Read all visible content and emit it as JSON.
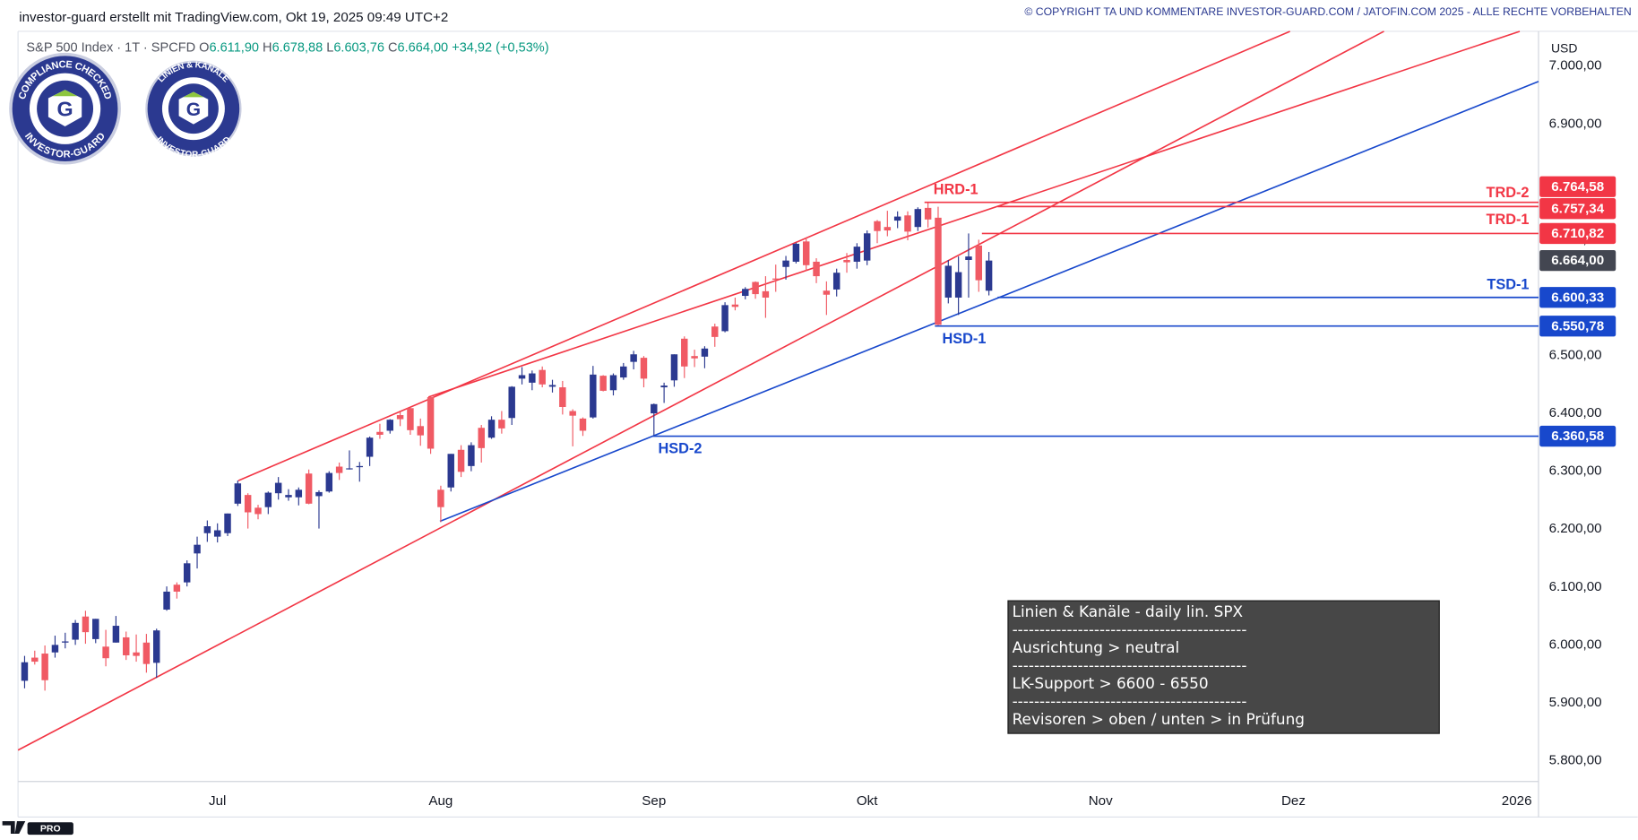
{
  "header": {
    "left": "investor-guard erstellt mit TradingView.com, Okt 19, 2025 09:49 UTC+2",
    "right": "© COPYRIGHT TA UND KOMMENTARE INVESTOR-GUARD.COM / JATOFIN.COM 2025 - ALLE RECHTE VORBEHALTEN"
  },
  "legend": {
    "symbol": "S&P 500 Index · 1T · SPCFD",
    "fields": [
      {
        "key": "O",
        "value": "6.611,90"
      },
      {
        "key": "H",
        "value": "6.678,88"
      },
      {
        "key": "L",
        "value": "6.603,76"
      },
      {
        "key": "C",
        "value": "6.664,00"
      }
    ],
    "change": "+34,92 (+0,53%)"
  },
  "badges": [
    {
      "top": "COMPLIANCE CHECKED",
      "bottom": "INVESTOR-GUARD"
    },
    {
      "top": "LINIEN & KANÄLE",
      "bottom": "INVESTOR-GUARD"
    }
  ],
  "chart_data": {
    "type": "candlestick",
    "categories": [
      null,
      null,
      null,
      null,
      null,
      null,
      null,
      null,
      null,
      null,
      null,
      null,
      null,
      null,
      null,
      null,
      null,
      null,
      null,
      "Jul",
      null,
      null,
      null,
      null,
      null,
      null,
      null,
      null,
      null,
      null,
      null,
      null,
      null,
      null,
      null,
      null,
      null,
      null,
      null,
      null,
      null,
      "Aug",
      null,
      null,
      null,
      null,
      null,
      null,
      null,
      null,
      null,
      null,
      null,
      null,
      null,
      null,
      null,
      null,
      null,
      null,
      null,
      null,
      "Sep",
      null,
      null,
      null,
      null,
      null,
      null,
      null,
      null,
      null,
      null,
      null,
      null,
      null,
      null,
      null,
      null,
      null,
      null,
      null,
      null,
      "Okt",
      null,
      null,
      null,
      null,
      null,
      null,
      null,
      null,
      null,
      null,
      null,
      null,
      null,
      null,
      null,
      null,
      null,
      null,
      null,
      null,
      null,
      null,
      "Nov",
      null,
      null,
      null,
      null,
      null,
      null,
      null,
      null,
      null,
      null,
      null,
      null,
      null,
      null,
      null,
      null,
      null,
      null,
      "Dez",
      null,
      null,
      null,
      null,
      null,
      null,
      null,
      null,
      null,
      null,
      null,
      null,
      null,
      null,
      null,
      null,
      null,
      null,
      null,
      null,
      null,
      "2026"
    ],
    "open": [
      5938,
      5978,
      5985,
      5987,
      6004,
      6009,
      6049,
      6010,
      5997,
      6004,
      6013,
      5987,
      6004,
      5969,
      6061,
      6104,
      6108,
      6158,
      6193,
      6187,
      6193,
      6244,
      6259,
      6237,
      6238,
      6262,
      6255,
      6255,
      6296,
      6257,
      6265,
      6308,
      6304,
      6307,
      6325,
      6368,
      6370,
      6397,
      6409,
      6378,
      6428,
      6268,
      6272,
      6337,
      6309,
      6375,
      6358,
      6389,
      6392,
      6460,
      6453,
      6475,
      6446,
      6445,
      6404,
      6391,
      6393,
      6465,
      6440,
      6462,
      6489,
      6496,
      6400,
      6445,
      6457,
      6529,
      6499,
      6498,
      6550,
      6542,
      6588,
      6603,
      6627,
      6611,
      6633,
      6653,
      6662,
      6697,
      6662,
      6612,
      6614,
      6665,
      6662,
      6664,
      6732,
      6722,
      6733,
      6742,
      6722,
      6755,
      6738,
      6600,
      6600,
      6665,
      6690,
      6611.9,
      null,
      null,
      null,
      null,
      null,
      null,
      null,
      null,
      null,
      null,
      null,
      null,
      null,
      null,
      null,
      null,
      null,
      null,
      null,
      null,
      null,
      null,
      null,
      null,
      null,
      null,
      null,
      null,
      null,
      null,
      null,
      null,
      null,
      null,
      null,
      null,
      null,
      null,
      null,
      null,
      null,
      null,
      null,
      null,
      null,
      null,
      null,
      null,
      null,
      null,
      null,
      null
    ],
    "high": [
      5981,
      5990,
      5999,
      6016,
      6021,
      6043,
      6059,
      6045,
      6026,
      6050,
      6023,
      6018,
      6019,
      6028,
      6101,
      6108,
      6146,
      6187,
      6215,
      6210,
      6227,
      6284,
      6262,
      6242,
      6265,
      6290,
      6269,
      6272,
      6303,
      6267,
      6300,
      6315,
      6336,
      6316,
      6360,
      6382,
      6390,
      6402,
      6410,
      6391,
      6428,
      6275,
      6330,
      6345,
      6350,
      6380,
      6395,
      6404,
      6447,
      6480,
      6474,
      6481,
      6458,
      6456,
      6407,
      6393,
      6482,
      6466,
      6469,
      6487,
      6508,
      6499,
      6417,
      6453,
      6502,
      6533,
      6510,
      6516,
      6555,
      6592,
      6600,
      6618,
      6628,
      6637,
      6657,
      6672,
      6695,
      6704,
      6668,
      6628,
      6650,
      6677,
      6694,
      6716,
      6734,
      6750,
      6749,
      6749,
      6756,
      6764.58,
      6757,
      6665,
      6671,
      6710.82,
      6700,
      6678.88,
      null,
      null,
      null,
      null,
      null,
      null,
      null,
      null,
      null,
      null,
      null,
      null,
      null,
      null,
      null,
      null,
      null,
      null,
      null,
      null,
      null,
      null,
      null,
      null,
      null,
      null,
      null,
      null,
      null,
      null,
      null,
      null,
      null,
      null,
      null,
      null,
      null,
      null,
      null,
      null,
      null,
      null,
      null,
      null,
      null,
      null,
      null,
      null,
      null,
      null,
      null,
      null
    ],
    "low": [
      5925,
      5966,
      5921,
      5978,
      5994,
      6000,
      6002,
      6003,
      5963,
      6004,
      5974,
      5971,
      5952,
      5943,
      6059,
      6080,
      6101,
      6132,
      6178,
      6177,
      6188,
      6240,
      6201,
      6217,
      6226,
      6251,
      6249,
      6241,
      6243,
      6201,
      6263,
      6285,
      6303,
      6282,
      6309,
      6356,
      6365,
      6378,
      6363,
      6344,
      6330,
      6212,
      6265,
      6290,
      6300,
      6315,
      6356,
      6365,
      6380,
      6450,
      6440,
      6445,
      6436,
      6398,
      6343,
      6361,
      6391,
      6438,
      6431,
      6458,
      6476,
      6445,
      6360.58,
      6418,
      6446,
      6461,
      6480,
      6478,
      6515,
      6540,
      6578,
      6597,
      6598,
      6565,
      6610,
      6631,
      6659,
      6646,
      6625,
      6570,
      6602,
      6643,
      6650,
      6656,
      6694,
      6706,
      6720,
      6699,
      6715,
      6721,
      6550.78,
      6590,
      6570,
      6600,
      6610,
      6603.76,
      null,
      null,
      null,
      null,
      null,
      null,
      null,
      null,
      null,
      null,
      null,
      null,
      null,
      null,
      null,
      null,
      null,
      null,
      null,
      null,
      null,
      null,
      null,
      null,
      null,
      null,
      null,
      null,
      null,
      null,
      null,
      null,
      null,
      null,
      null,
      null,
      null,
      null,
      null,
      null,
      null,
      null,
      null,
      null,
      null,
      null,
      null,
      null,
      null,
      null,
      null,
      null
    ],
    "close": [
      5970,
      5971,
      5939,
      6000,
      6006,
      6038,
      6022,
      6045,
      5977,
      6033,
      5982,
      5981,
      5967,
      6025,
      6092,
      6092,
      6141,
      6173,
      6205,
      6198,
      6227,
      6279,
      6229,
      6226,
      6263,
      6280,
      6259,
      6268,
      6244,
      6264,
      6297,
      6297,
      6305,
      6309,
      6358,
      6363,
      6389,
      6390,
      6371,
      6362,
      6339,
      6238,
      6330,
      6299,
      6345,
      6340,
      6389,
      6374,
      6446,
      6466,
      6469,
      6450,
      6449,
      6411,
      6396,
      6370,
      6467,
      6439,
      6466,
      6481,
      6502,
      6460,
      6416,
      6448,
      6502,
      6481,
      6495,
      6512,
      6532,
      6587,
      6584,
      6615,
      6606,
      6600,
      6631,
      6664,
      6693,
      6656,
      6637,
      6605,
      6643,
      6661,
      6688,
      6711,
      6715,
      6716,
      6740,
      6714,
      6753,
      6735,
      6553,
      6655,
      6644,
      6671,
      6630,
      6664,
      null,
      null,
      null,
      null,
      null,
      null,
      null,
      null,
      null,
      null,
      null,
      null,
      null,
      null,
      null,
      null,
      null,
      null,
      null,
      null,
      null,
      null,
      null,
      null,
      null,
      null,
      null,
      null,
      null,
      null,
      null,
      null,
      null,
      null,
      null,
      null,
      null,
      null,
      null,
      null,
      null,
      null,
      null,
      null,
      null,
      null,
      null,
      null,
      null,
      null,
      null,
      null
    ],
    "up_color": "#2b3990",
    "down_color": "#f05a64",
    "currency": "USD",
    "ylim": [
      5764,
      7060
    ],
    "yticks": [
      {
        "value": 5800,
        "label": "5.800,00"
      },
      {
        "value": 5900,
        "label": "5.900,00"
      },
      {
        "value": 6000,
        "label": "6.000,00"
      },
      {
        "value": 6100,
        "label": "6.100,00"
      },
      {
        "value": 6200,
        "label": "6.200,00"
      },
      {
        "value": 6300,
        "label": "6.300,00"
      },
      {
        "value": 6400,
        "label": "6.400,00"
      },
      {
        "value": 6500,
        "label": "6.500,00"
      },
      {
        "value": 6600,
        "label": "6.600,00"
      },
      {
        "value": 6700,
        "label": "6.700,00"
      },
      {
        "value": 6800,
        "label": "6.800,00"
      },
      {
        "value": 6900,
        "label": "6.900,00"
      },
      {
        "value": 7000,
        "label": "7.000,00"
      }
    ],
    "last": {
      "value": 6664,
      "label": "6.664,00",
      "color": "#434651"
    },
    "levels": [
      {
        "value": 6764.58,
        "label": "6.764,58",
        "color": "#f23645"
      },
      {
        "value": 6757.34,
        "label": "6.757,34",
        "color": "#f23645"
      },
      {
        "value": 6710.82,
        "label": "6.710,82",
        "color": "#f23645"
      },
      {
        "value": 6600.33,
        "label": "6.600,33",
        "color": "#1848cc"
      },
      {
        "value": 6550.78,
        "label": "6.550,78",
        "color": "#1848cc"
      },
      {
        "value": 6360.58,
        "label": "6.360,58",
        "color": "#1848cc"
      }
    ],
    "annotations": [
      {
        "text": "HRD-1",
        "color": "#f23645"
      },
      {
        "text": "TRD-2",
        "color": "#f23645"
      },
      {
        "text": "TRD-1",
        "color": "#f23645"
      },
      {
        "text": "TSD-1",
        "color": "#1848cc"
      },
      {
        "text": "HSD-1",
        "color": "#1848cc"
      },
      {
        "text": "HSD-2",
        "color": "#1848cc"
      }
    ]
  },
  "info_box": {
    "lines": [
      "Linien & Kanäle - daily lin. SPX",
      "-------------------------------------------",
      "Ausrichtung > neutral",
      "-------------------------------------------",
      "LK-Support > 6600 - 6550",
      "-------------------------------------------",
      "Revisoren > oben / unten > in Prüfung"
    ]
  },
  "logo": "PRO"
}
